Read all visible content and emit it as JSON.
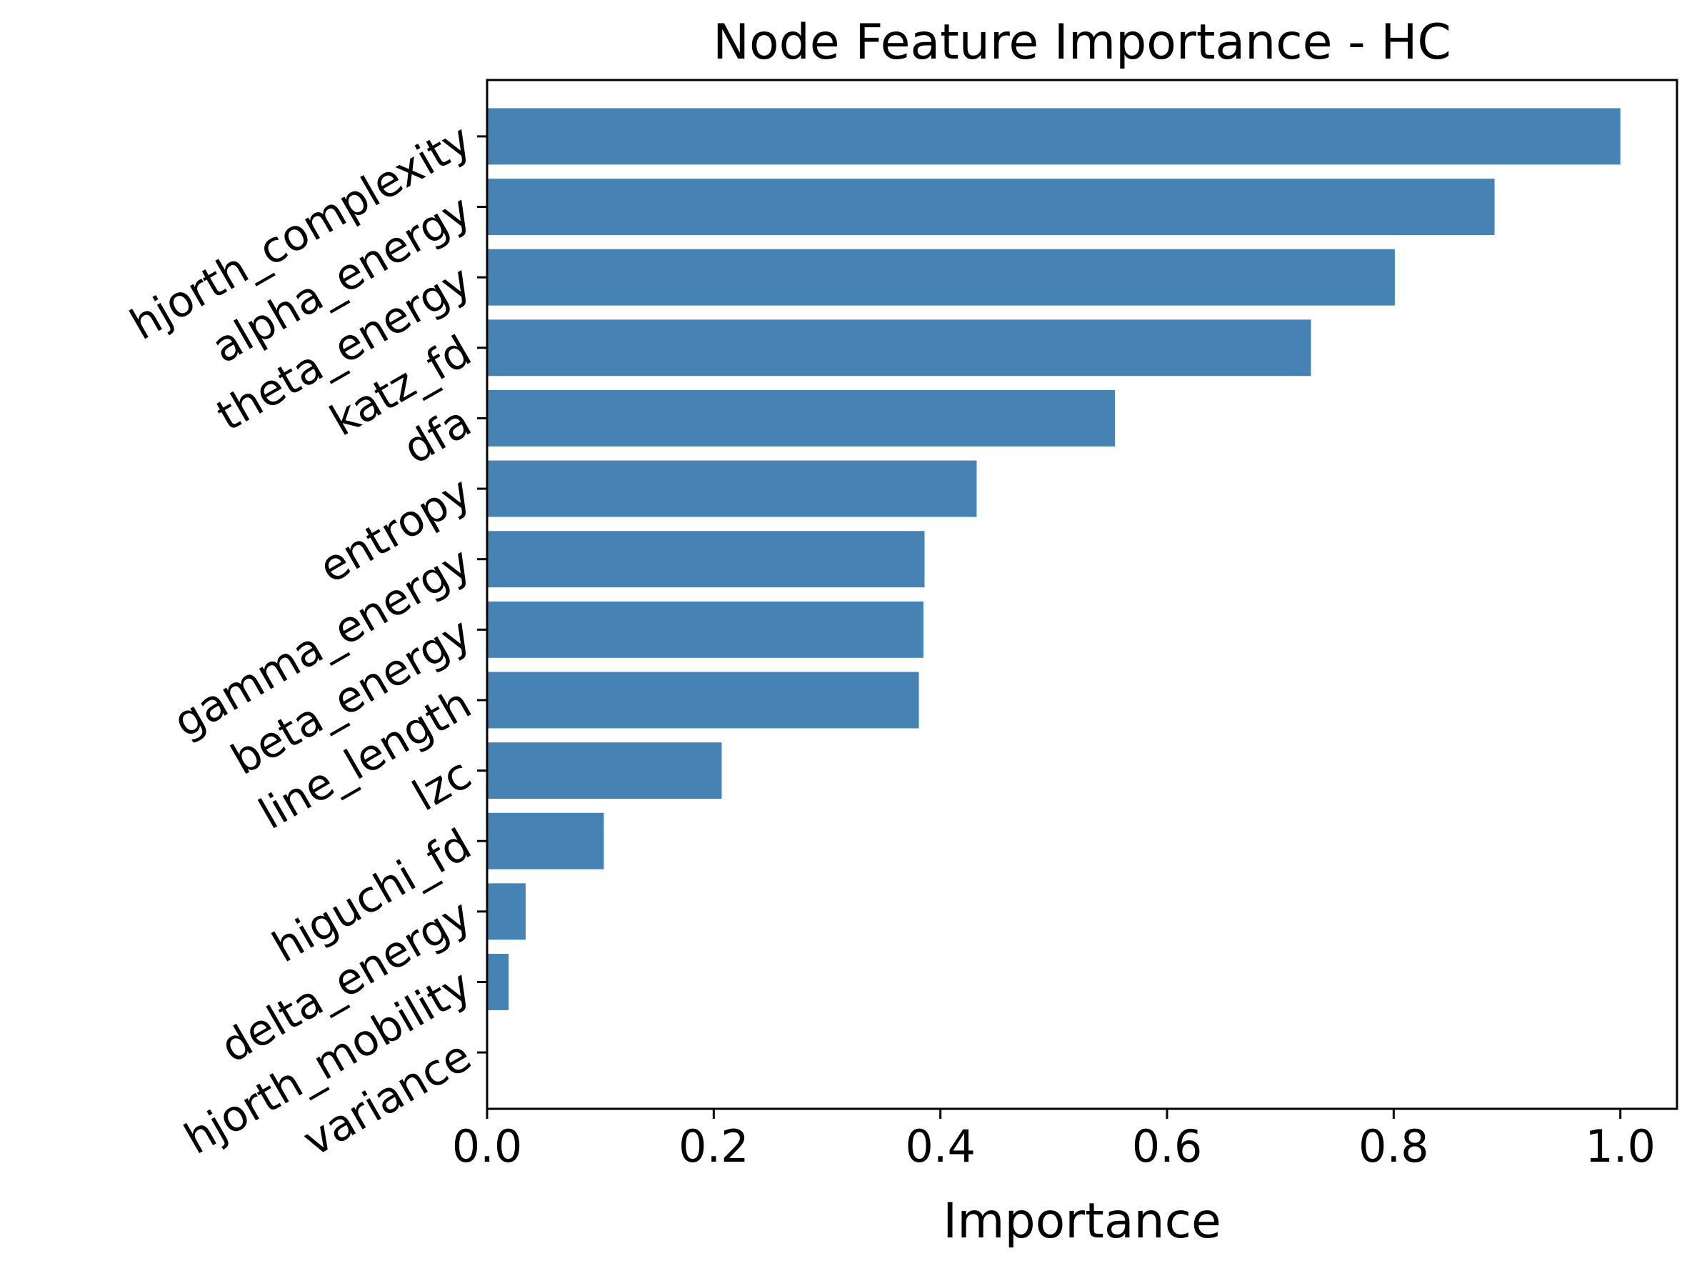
{
  "chart_data": {
    "type": "bar",
    "orientation": "horizontal",
    "title": "Node Feature Importance - HC",
    "xlabel": "Importance",
    "ylabel": "",
    "xlim": [
      0,
      1.05
    ],
    "xticks": [
      "0.0",
      "0.2",
      "0.4",
      "0.6",
      "0.8",
      "1.0"
    ],
    "grid": false,
    "bar_color": "#4682b4",
    "categories": [
      "hjorth_complexity",
      "alpha_energy",
      "theta_energy",
      "katz_fd",
      "dfa",
      "entropy",
      "gamma_energy",
      "beta_energy",
      "line_length",
      "lzc",
      "higuchi_fd",
      "delta_energy",
      "hjorth_mobility",
      "variance"
    ],
    "values": [
      1.0,
      0.889,
      0.801,
      0.727,
      0.554,
      0.432,
      0.386,
      0.385,
      0.381,
      0.207,
      0.103,
      0.034,
      0.019,
      0.0
    ]
  }
}
